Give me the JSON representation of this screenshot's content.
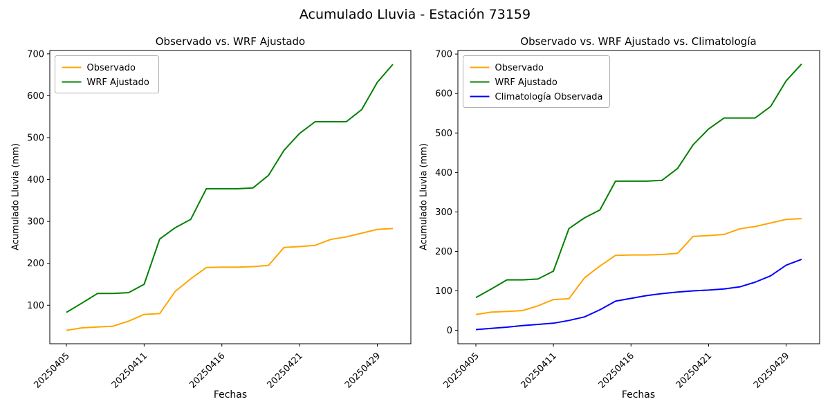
{
  "figure": {
    "suptitle": "Acumulado Lluvia - Estación 73159",
    "background": "#ffffff"
  },
  "chart_data": [
    {
      "type": "line",
      "title": "Observado vs. WRF Ajustado",
      "xlabel": "Fechas",
      "ylabel": "Acumulado Lluvia (mm)",
      "ylim": [
        8,
        708
      ],
      "yticks": [
        100,
        200,
        300,
        400,
        500,
        600,
        700
      ],
      "n_points": 22,
      "x_tick_positions": [
        0,
        5,
        10,
        15,
        20
      ],
      "x_tick_labels": [
        "20250405",
        "20250411",
        "20250416",
        "20250421",
        "20250429"
      ],
      "grid": false,
      "legend_position": "upper left",
      "series": [
        {
          "name": "Observado",
          "color": "#FFA500",
          "values": [
            40,
            46,
            48,
            50,
            62,
            78,
            80,
            133,
            163,
            190,
            191,
            191,
            192,
            195,
            238,
            240,
            243,
            257,
            263,
            272,
            281,
            283
          ]
        },
        {
          "name": "WRF Ajustado",
          "color": "#008000",
          "values": [
            83,
            105,
            128,
            128,
            130,
            150,
            258,
            285,
            305,
            378,
            378,
            378,
            380,
            410,
            470,
            510,
            538,
            538,
            538,
            567,
            632,
            675
          ]
        }
      ]
    },
    {
      "type": "line",
      "title": "Observado vs. WRF Ajustado vs. Climatología",
      "xlabel": "Fechas",
      "ylabel": "Acumulado Lluvia (mm)",
      "ylim": [
        -34,
        709
      ],
      "yticks": [
        0,
        100,
        200,
        300,
        400,
        500,
        600,
        700
      ],
      "n_points": 22,
      "x_tick_positions": [
        0,
        5,
        10,
        15,
        20
      ],
      "x_tick_labels": [
        "20250405",
        "20250411",
        "20250416",
        "20250421",
        "20250429"
      ],
      "grid": false,
      "legend_position": "upper left",
      "series": [
        {
          "name": "Observado",
          "color": "#FFA500",
          "values": [
            40,
            46,
            48,
            50,
            62,
            78,
            80,
            133,
            163,
            190,
            191,
            191,
            192,
            195,
            238,
            240,
            243,
            257,
            263,
            272,
            281,
            283
          ]
        },
        {
          "name": "WRF Ajustado",
          "color": "#008000",
          "values": [
            83,
            105,
            128,
            128,
            130,
            150,
            258,
            285,
            305,
            378,
            378,
            378,
            380,
            410,
            470,
            510,
            538,
            538,
            538,
            567,
            632,
            675
          ]
        },
        {
          "name": "Climatología Observada",
          "color": "#0000FF",
          "values": [
            2,
            5,
            8,
            12,
            15,
            18,
            25,
            34,
            52,
            74,
            81,
            88,
            93,
            97,
            100,
            102,
            105,
            110,
            122,
            138,
            165,
            180
          ]
        }
      ]
    }
  ]
}
